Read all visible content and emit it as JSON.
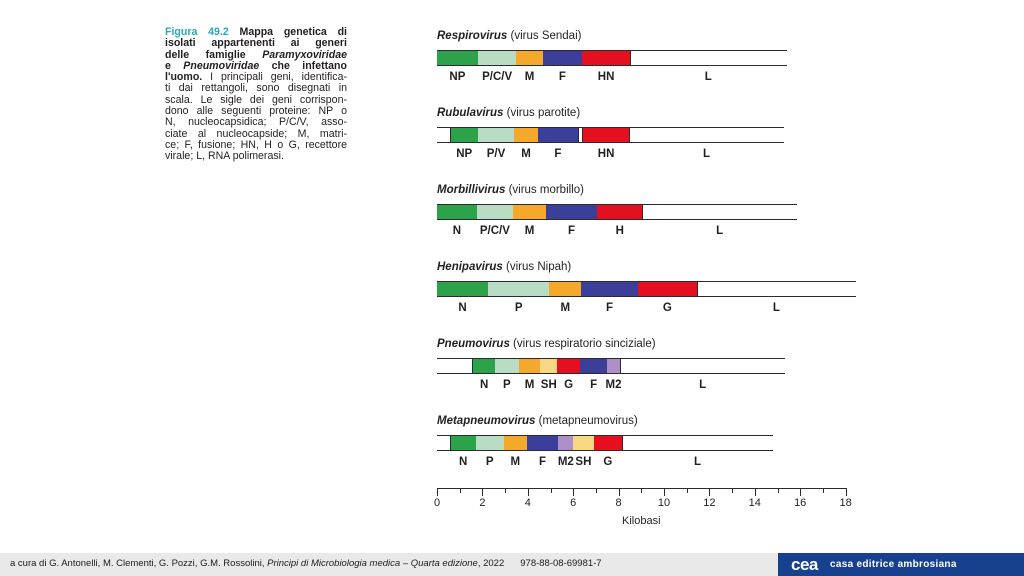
{
  "caption": {
    "lines": [
      {
        "runs": [
          {
            "t": "Figura 49.2 ",
            "s": "fig"
          },
          {
            "t": "Mappa genetica di",
            "s": "b"
          }
        ],
        "just": true
      },
      {
        "runs": [
          {
            "t": "isolati appartenenti ai generi",
            "s": "b"
          }
        ],
        "just": true
      },
      {
        "runs": [
          {
            "t": "delle famiglie ",
            "s": "b"
          },
          {
            "t": "Paramyxoviridae",
            "s": "bi"
          }
        ],
        "just": true
      },
      {
        "runs": [
          {
            "t": "e ",
            "s": "b"
          },
          {
            "t": "Pneumoviridae",
            "s": "bi"
          },
          {
            "t": " che infettano",
            "s": "b"
          }
        ],
        "just": true
      },
      {
        "runs": [
          {
            "t": "l'uomo.",
            "s": "b"
          },
          {
            "t": " I principali geni, identifica-",
            "s": "n"
          }
        ],
        "just": true
      },
      {
        "runs": [
          {
            "t": "ti dai rettangoli, sono disegnati in",
            "s": "n"
          }
        ],
        "just": true
      },
      {
        "runs": [
          {
            "t": "scala. Le sigle dei geni corrispon-",
            "s": "n"
          }
        ],
        "just": true
      },
      {
        "runs": [
          {
            "t": "dono alle seguenti proteine: NP o",
            "s": "n"
          }
        ],
        "just": true
      },
      {
        "runs": [
          {
            "t": "N, nucleocapsidica; P/C/V, asso-",
            "s": "n"
          }
        ],
        "just": true
      },
      {
        "runs": [
          {
            "t": "ciate al nucleocapside; M, matri-",
            "s": "n"
          }
        ],
        "just": true
      },
      {
        "runs": [
          {
            "t": "ce; F, fusione; HN, H o G, recettore",
            "s": "n"
          }
        ],
        "just": true
      },
      {
        "runs": [
          {
            "t": "virale; L, RNA polimerasi.",
            "s": "n"
          }
        ],
        "just": false
      }
    ]
  },
  "diagram": {
    "unit": "kilobasi",
    "colors": {
      "green": "#2ca24b",
      "lightgreen": "#b8dcc4",
      "orange": "#f4a82c",
      "blue": "#3c3f99",
      "red": "#e40f1f",
      "purple": "#ae90c8",
      "paleyellow": "#f8d783",
      "white": "#ffffff"
    },
    "viruses": [
      {
        "genus": "Respirovirus",
        "subtitle": "(virus Sendai)",
        "segments": [
          {
            "label": "NP",
            "start": 0,
            "end": 1.8,
            "color": "green"
          },
          {
            "label": "P/C/V",
            "start": 1.8,
            "end": 3.5,
            "color": "lightgreen"
          },
          {
            "label": "M",
            "start": 3.5,
            "end": 4.65,
            "color": "orange"
          },
          {
            "label": "F",
            "start": 4.65,
            "end": 6.4,
            "color": "blue"
          },
          {
            "label": "HN",
            "start": 6.4,
            "end": 8.5,
            "color": "red"
          },
          {
            "label": "L",
            "start": 8.5,
            "end": 15.4,
            "color": "white"
          }
        ]
      },
      {
        "genus": "Rubulavirus",
        "subtitle": "(virus parotite)",
        "segments": [
          {
            "label": "",
            "start": 0,
            "end": 0.6,
            "color": "white"
          },
          {
            "label": "NP",
            "start": 0.6,
            "end": 1.8,
            "color": "green"
          },
          {
            "label": "P/V",
            "start": 1.8,
            "end": 3.4,
            "color": "lightgreen"
          },
          {
            "label": "M",
            "start": 3.4,
            "end": 4.45,
            "color": "orange"
          },
          {
            "label": "F",
            "start": 4.45,
            "end": 6.2,
            "color": "blue"
          },
          {
            "label": "",
            "start": 6.2,
            "end": 6.45,
            "color": "white"
          },
          {
            "label": "HN",
            "start": 6.45,
            "end": 8.45,
            "color": "red"
          },
          {
            "label": "L",
            "start": 8.45,
            "end": 15.3,
            "color": "white"
          }
        ]
      },
      {
        "genus": "Morbillivirus",
        "subtitle": "(virus morbillo)",
        "segments": [
          {
            "label": "N",
            "start": 0,
            "end": 1.75,
            "color": "green"
          },
          {
            "label": "P/C/V",
            "start": 1.75,
            "end": 3.35,
            "color": "lightgreen"
          },
          {
            "label": "M",
            "start": 3.35,
            "end": 4.8,
            "color": "orange"
          },
          {
            "label": "F",
            "start": 4.8,
            "end": 7.05,
            "color": "blue"
          },
          {
            "label": "H",
            "start": 7.05,
            "end": 9.05,
            "color": "red"
          },
          {
            "label": "L",
            "start": 9.05,
            "end": 15.85,
            "color": "white"
          }
        ]
      },
      {
        "genus": "Henipavirus",
        "subtitle": "(virus Nipah)",
        "segments": [
          {
            "label": "N",
            "start": 0,
            "end": 2.25,
            "color": "green"
          },
          {
            "label": "P",
            "start": 2.25,
            "end": 4.95,
            "color": "lightgreen"
          },
          {
            "label": "M",
            "start": 4.95,
            "end": 6.35,
            "color": "orange"
          },
          {
            "label": "F",
            "start": 6.35,
            "end": 8.85,
            "color": "blue"
          },
          {
            "label": "G",
            "start": 8.85,
            "end": 11.45,
            "color": "red"
          },
          {
            "label": "L",
            "start": 11.45,
            "end": 18.45,
            "color": "white"
          }
        ]
      },
      {
        "genus": "Pneumovirus",
        "subtitle": "(virus respiratorio sinciziale)",
        "segments": [
          {
            "label": "",
            "start": 0,
            "end": 1.6,
            "color": "white"
          },
          {
            "label": "N",
            "start": 1.6,
            "end": 2.55,
            "color": "green"
          },
          {
            "label": "P",
            "start": 2.55,
            "end": 3.6,
            "color": "lightgreen"
          },
          {
            "label": "M",
            "start": 3.6,
            "end": 4.55,
            "color": "orange"
          },
          {
            "label": "SH",
            "start": 4.55,
            "end": 5.3,
            "color": "paleyellow"
          },
          {
            "label": "G",
            "start": 5.3,
            "end": 6.3,
            "color": "red"
          },
          {
            "label": "F",
            "start": 6.3,
            "end": 7.5,
            "color": "blue"
          },
          {
            "label": "M2",
            "start": 7.5,
            "end": 8.05,
            "color": "purple"
          },
          {
            "label": "L",
            "start": 8.05,
            "end": 15.35,
            "color": "white"
          }
        ]
      },
      {
        "genus": "Metapneumovirus",
        "subtitle": "(metapneumovirus)",
        "segments": [
          {
            "label": "",
            "start": 0,
            "end": 0.6,
            "color": "white"
          },
          {
            "label": "N",
            "start": 0.6,
            "end": 1.7,
            "color": "green"
          },
          {
            "label": "P",
            "start": 1.7,
            "end": 2.95,
            "color": "lightgreen"
          },
          {
            "label": "M",
            "start": 2.95,
            "end": 3.95,
            "color": "orange"
          },
          {
            "label": "F",
            "start": 3.95,
            "end": 5.35,
            "color": "blue"
          },
          {
            "label": "M2",
            "start": 5.35,
            "end": 6.0,
            "color": "purple"
          },
          {
            "label": "SH",
            "start": 6.0,
            "end": 6.9,
            "color": "paleyellow"
          },
          {
            "label": "G",
            "start": 6.9,
            "end": 8.15,
            "color": "red"
          },
          {
            "label": "L",
            "start": 8.15,
            "end": 14.8,
            "color": "white"
          }
        ]
      }
    ],
    "axis": {
      "title": "Kilobasi",
      "max": 18,
      "major_ticks": [
        0,
        2,
        4,
        6,
        8,
        10,
        12,
        14,
        16,
        18
      ],
      "minor_ticks": [
        1,
        3,
        5,
        7,
        9,
        11,
        13,
        15,
        17
      ]
    }
  },
  "footer": {
    "credits_runs": [
      {
        "t": "a cura di G. Antonelli, M. Clementi, G. Pozzi, G.M. Rossolini, ",
        "s": "n"
      },
      {
        "t": "Principi di Microbiologia medica – Quarta edizione",
        "s": "i"
      },
      {
        "t": ", 2022",
        "s": "n"
      }
    ],
    "isbn": "978-88-08-69981-7",
    "logo_text": "cea",
    "logo_name": "casa editrice ambrosiana"
  }
}
